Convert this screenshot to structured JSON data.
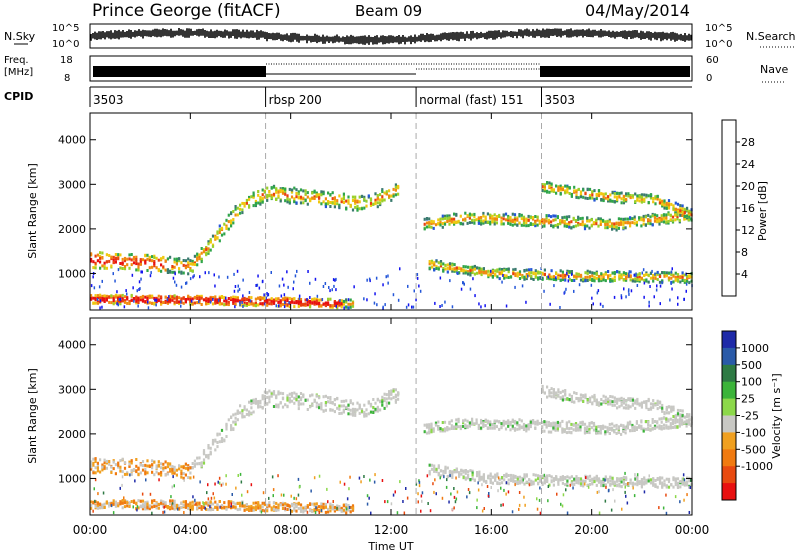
{
  "header": {
    "station": "Prince George (fitACF)",
    "beam": "Beam 09",
    "date": "04/May/2014"
  },
  "chart_data": {
    "type": "heatmap",
    "x": {
      "label": "Time UT",
      "ticks": [
        "00:00",
        "04:00",
        "08:00",
        "12:00",
        "16:00",
        "20:00",
        "00:00"
      ],
      "range_hours": [
        0,
        24
      ]
    },
    "cpid": {
      "label": "CPID",
      "segments": [
        {
          "label": "3503",
          "start_h": 0.0
        },
        {
          "label": "rbsp 200",
          "start_h": 7.0
        },
        {
          "label": "normal (fast) 151",
          "start_h": 13.0
        },
        {
          "label": "3503",
          "start_h": 18.0
        }
      ]
    },
    "noise_panel": {
      "left_label": "N.Sky",
      "right_label": "N.Search",
      "left_ticks": [
        "10^5",
        "10^0"
      ],
      "right_ticks": [
        "10^5",
        "10^0"
      ]
    },
    "freq_panel": {
      "left_label_1": "Freq.",
      "left_label_2": "[MHz]",
      "right_label": "Nave",
      "left_ticks": [
        "18",
        "8"
      ],
      "right_ticks": [
        "60",
        "0"
      ]
    },
    "power_panel": {
      "ylabel": "Slant Range [km]",
      "yticks": [
        "1000",
        "2000",
        "3000",
        "4000"
      ],
      "ylim": [
        180,
        4600
      ],
      "colorbar": {
        "label": "Power [dB]",
        "ticks": [
          "4",
          "8",
          "12",
          "16",
          "20",
          "24",
          "28"
        ],
        "colors": [
          "#1414f0",
          "#2456d8",
          "#3a7a6e",
          "#2fa54a",
          "#9bd02a",
          "#f0c810",
          "#f08a10",
          "#e84010",
          "#e81010"
        ]
      }
    },
    "velocity_panel": {
      "ylabel": "Slant Range [km]",
      "yticks": [
        "1000",
        "2000",
        "3000",
        "4000"
      ],
      "ylim": [
        180,
        4600
      ],
      "colorbar": {
        "label": "Velocity [m s⁻¹]",
        "ticks": [
          "1000",
          "500",
          "100",
          "25",
          "-25",
          "-100",
          "-500",
          "-1000"
        ],
        "colors": [
          "#1e2aa8",
          "#2a5aa8",
          "#2e7a44",
          "#3cb43a",
          "#8cd84a",
          "#c8c8c4",
          "#f0a020",
          "#f07a10",
          "#e84a10",
          "#e81010"
        ]
      }
    },
    "scatter_bands": [
      {
        "name": "main-range-band",
        "t": [
          0,
          2,
          4,
          5,
          6,
          7,
          9,
          11,
          12.3
        ],
        "r": [
          1300,
          1250,
          1150,
          1800,
          2500,
          2800,
          2700,
          2550,
          2900
        ],
        "width_km": 220
      },
      {
        "name": "near-range-band",
        "t": [
          0,
          2,
          4,
          6,
          8,
          10.5
        ],
        "r": [
          420,
          410,
          400,
          380,
          350,
          320
        ],
        "width_km": 120
      },
      {
        "name": "second-hop-band",
        "t": [
          13.3,
          15,
          17,
          19,
          21,
          23,
          24
        ],
        "r": [
          2100,
          2250,
          2200,
          2150,
          2100,
          2250,
          2300
        ],
        "width_km": 160
      },
      {
        "name": "upper-band",
        "t": [
          18,
          19.5,
          21,
          22.5,
          24
        ],
        "r": [
          2950,
          2800,
          2700,
          2650,
          2300
        ],
        "width_km": 150
      },
      {
        "name": "low-band",
        "t": [
          13.5,
          16,
          19,
          22,
          24
        ],
        "r": [
          1200,
          1000,
          950,
          920,
          900
        ],
        "width_km": 140
      }
    ]
  }
}
